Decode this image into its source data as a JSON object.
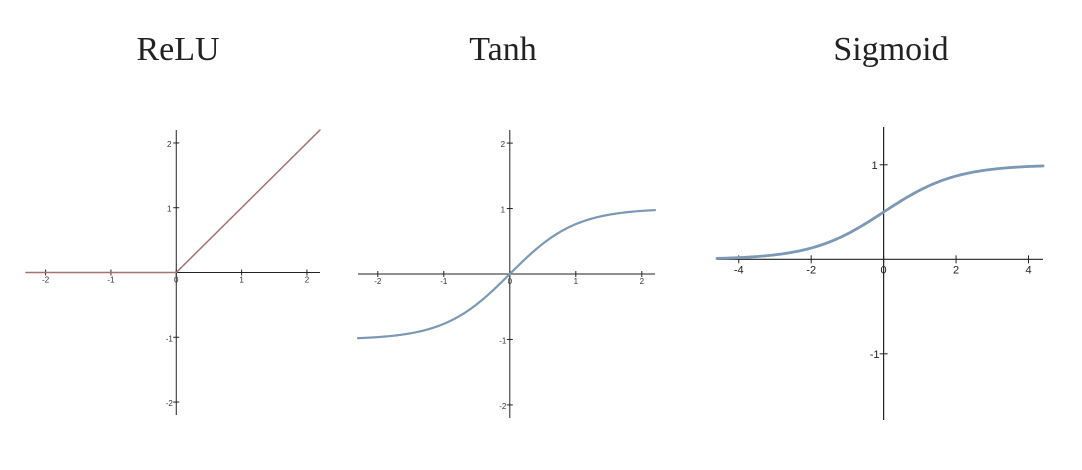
{
  "chart_data": [
    {
      "type": "line",
      "title": "ReLU",
      "function": "relu",
      "xlim": [
        -2.3,
        2.2
      ],
      "ylim": [
        -2.2,
        2.2
      ],
      "x_ticks": [
        -2,
        -1,
        0,
        1,
        2
      ],
      "y_ticks": [
        -2,
        -1,
        1,
        2
      ],
      "x_tick_labels": [
        "-2",
        "-1",
        "0",
        "1",
        "2"
      ],
      "y_tick_labels": [
        "-2",
        "-1",
        "1",
        "2"
      ],
      "line_color": "#a8706f",
      "x": [
        -2.3,
        0,
        2.2
      ],
      "y": [
        0,
        0,
        2.2
      ]
    },
    {
      "type": "line",
      "title": "Tanh",
      "function": "tanh",
      "xlim": [
        -2.3,
        2.2
      ],
      "ylim": [
        -2.2,
        2.2
      ],
      "x_ticks": [
        -2,
        -1,
        0,
        1,
        2
      ],
      "y_ticks": [
        -2,
        -1,
        1,
        2
      ],
      "x_tick_labels": [
        "-2",
        "-1",
        "0",
        "1",
        "2"
      ],
      "y_tick_labels": [
        "-2",
        "-1",
        "1",
        "2"
      ],
      "line_color": "#7b98b5",
      "x": [
        -2,
        -1,
        0,
        1,
        2
      ],
      "y": [
        -0.96,
        -0.76,
        0,
        0.76,
        0.96
      ]
    },
    {
      "type": "line",
      "title": "Sigmoid",
      "function": "sigmoid",
      "xlim": [
        -4.6,
        4.4
      ],
      "ylim": [
        -1.7,
        1.4
      ],
      "x_ticks": [
        -4,
        -2,
        0,
        2,
        4
      ],
      "y_ticks": [
        -1,
        1
      ],
      "x_tick_labels": [
        "-4",
        "-2",
        "0",
        "2",
        "4"
      ],
      "y_tick_labels": [
        "-1",
        "1"
      ],
      "line_color": "#7b98b5",
      "x": [
        -4,
        -2,
        0,
        2,
        4
      ],
      "y": [
        0.018,
        0.119,
        0.5,
        0.881,
        0.982
      ]
    }
  ],
  "colors": {
    "axis": "#222222",
    "relu_line": "#a8706f",
    "curve_line": "#7b98b5"
  }
}
